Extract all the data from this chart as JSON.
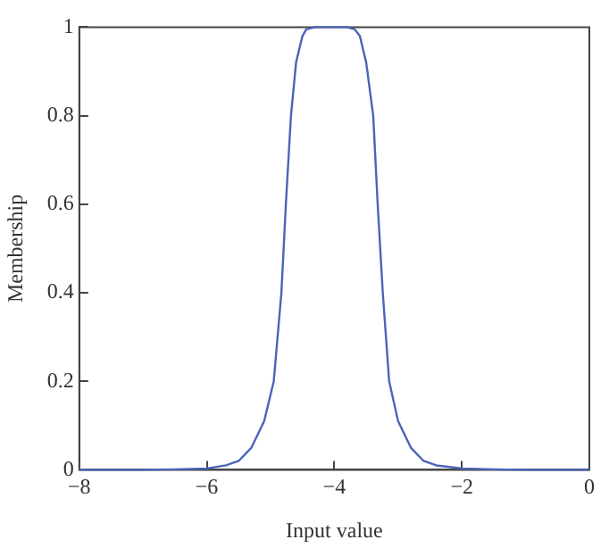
{
  "chart_data": {
    "type": "line",
    "xlabel": "Input value",
    "ylabel": "Membership",
    "x": [
      -8,
      -7,
      -6.5,
      -6,
      -5.7,
      -5.5,
      -5.3,
      -5.1,
      -4.95,
      -4.83,
      -4.76,
      -4.68,
      -4.6,
      -4.5,
      -4.44,
      -4.3,
      -4.05,
      -3.8,
      -3.68,
      -3.6,
      -3.5,
      -3.39,
      -3.32,
      -3.24,
      -3.14,
      -3.0,
      -2.8,
      -2.6,
      -2.4,
      -2,
      -1.5,
      -1,
      0
    ],
    "series": [
      {
        "color": "#4a64b8",
        "values": [
          0,
          0,
          0.001,
          0.003,
          0.01,
          0.02,
          0.05,
          0.11,
          0.2,
          0.4,
          0.6,
          0.8,
          0.92,
          0.98,
          0.995,
          1,
          1,
          1,
          0.995,
          0.98,
          0.92,
          0.8,
          0.6,
          0.4,
          0.2,
          0.11,
          0.05,
          0.02,
          0.01,
          0.003,
          0.001,
          0,
          0
        ]
      }
    ],
    "xlim": [
      -8,
      0
    ],
    "xticks": [
      {
        "value": -8,
        "label": "−8"
      },
      {
        "value": -6,
        "label": "−6"
      },
      {
        "value": -4,
        "label": "−4"
      },
      {
        "value": -2,
        "label": "−2"
      },
      0
    ],
    "ylim": [
      0,
      1
    ],
    "yticks": [
      0,
      0.2,
      0.4,
      0.6,
      0.8,
      1
    ],
    "grid": false,
    "legend": false,
    "marker": "none",
    "line_style": "solid"
  }
}
